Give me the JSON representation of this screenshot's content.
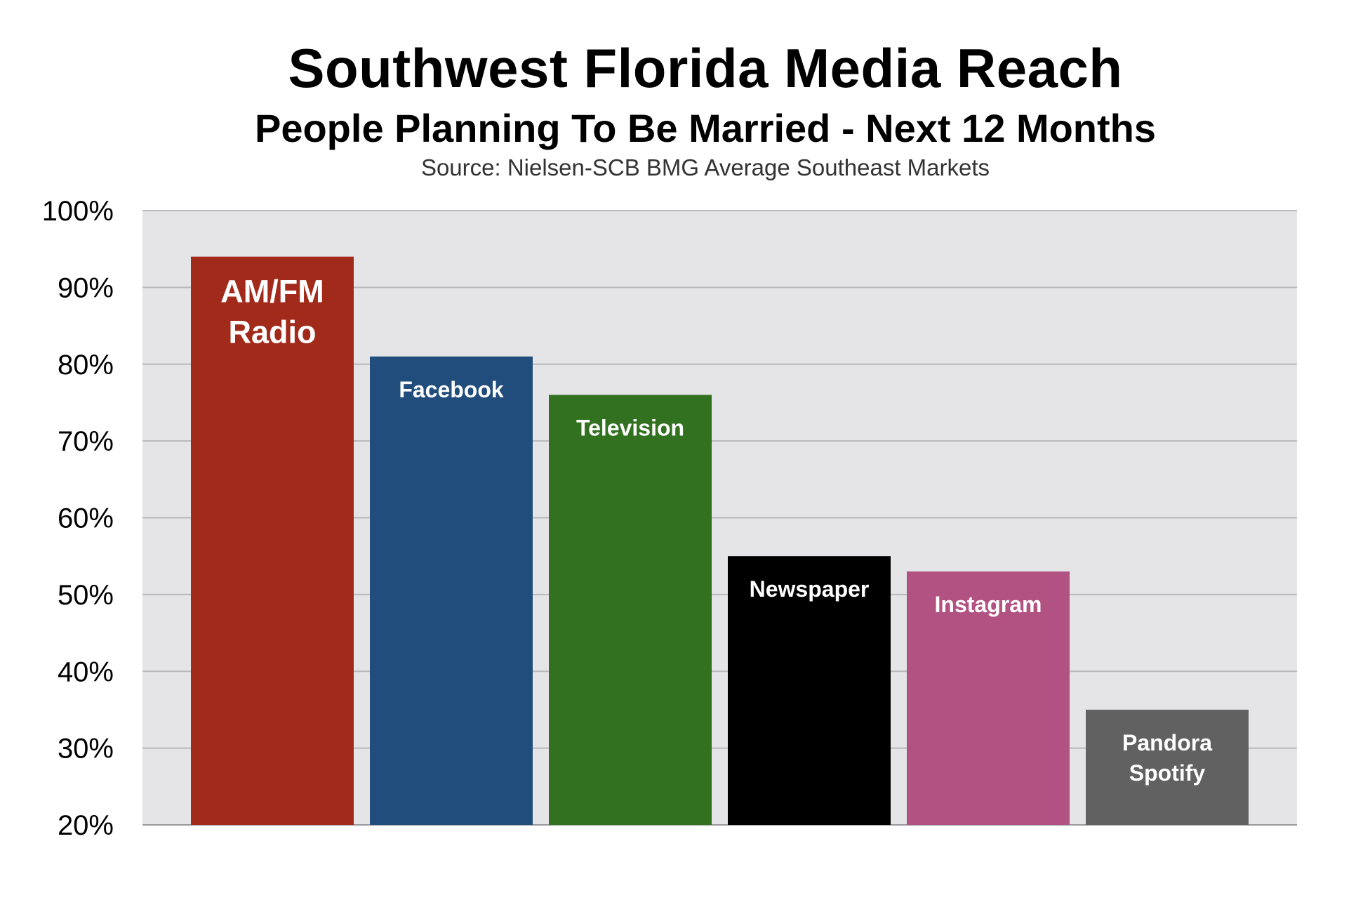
{
  "chart_data": {
    "type": "bar",
    "title": "Southwest Florida Media Reach",
    "subtitle": "People Planning To Be Married - Next 12 Months",
    "source": "Source: Nielsen-SCB BMG Average Southeast Markets",
    "xlabel": "",
    "ylabel": "",
    "ylim": [
      20,
      100
    ],
    "yticks": [
      20,
      30,
      40,
      50,
      60,
      70,
      80,
      90,
      100
    ],
    "ytick_labels": [
      "20%",
      "30%",
      "40%",
      "50%",
      "60%",
      "70%",
      "80%",
      "90%",
      "100%"
    ],
    "grid": true,
    "legend": "none",
    "background_color": "#e5e5e8",
    "grid_color": "#b9b9bc",
    "bars": [
      {
        "label_lines": [
          "AM/FM",
          "Radio"
        ],
        "value": 94,
        "color": "#a22a1a"
      },
      {
        "label_lines": [
          "Facebook"
        ],
        "value": 81,
        "color": "#214d7c"
      },
      {
        "label_lines": [
          "Television"
        ],
        "value": 76,
        "color": "#31711f"
      },
      {
        "label_lines": [
          "Newspaper"
        ],
        "value": 55,
        "color": "#000000"
      },
      {
        "label_lines": [
          "Instagram"
        ],
        "value": 53,
        "color": "#b15282"
      },
      {
        "label_lines": [
          "Pandora",
          "Spotify"
        ],
        "value": 35,
        "color": "#616161"
      }
    ]
  }
}
